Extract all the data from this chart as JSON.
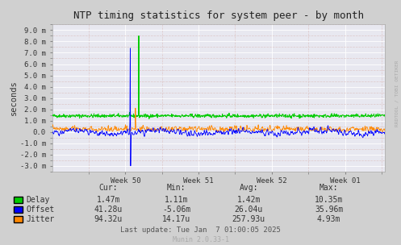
{
  "title": "NTP timing statistics for system peer - by month",
  "ylabel": "seconds",
  "bg_color": "#d0d0d0",
  "plot_bg_color": "#e8e8f0",
  "grid_color_major": "#ffffff",
  "grid_color_minor": "#ddc8c8",
  "ylim": [
    -0.0035,
    0.0095
  ],
  "yticks": [
    -0.003,
    -0.002,
    -0.001,
    0.0,
    0.001,
    0.002,
    0.003,
    0.004,
    0.005,
    0.006,
    0.007,
    0.008,
    0.009
  ],
  "ytick_labels": [
    "-3.0 m",
    "-2.0 m",
    "-1.0 m",
    "0.0",
    "1.0 m",
    "2.0 m",
    "3.0 m",
    "4.0 m",
    "5.0 m",
    "6.0 m",
    "7.0 m",
    "8.0 m",
    "9.0 m"
  ],
  "xtick_positions": [
    0.22,
    0.44,
    0.66,
    0.88
  ],
  "xtick_labels": [
    "Week 50",
    "Week 51",
    "Week 52",
    "Week 01"
  ],
  "legend_labels": [
    "Delay",
    "Offset",
    "Jitter"
  ],
  "legend_colors": [
    "#00cc00",
    "#0000ff",
    "#ff8800"
  ],
  "stats_headers": [
    "Cur:",
    "Min:",
    "Avg:",
    "Max:"
  ],
  "stats_delay": [
    "1.47m",
    "1.11m",
    "1.42m",
    "10.35m"
  ],
  "stats_offset": [
    "41.28u",
    "-5.06m",
    "26.04u",
    "35.96m"
  ],
  "stats_jitter": [
    "94.32u",
    "14.17u",
    "257.93u",
    "4.93m"
  ],
  "last_update": "Last update: Tue Jan  7 01:00:05 2025",
  "munin_version": "Munin 2.0.33-1",
  "side_text": "RRDTOOL / TOBI OETIKER",
  "delay_color": "#00cc00",
  "offset_color": "#0000ff",
  "jitter_color": "#ff8800",
  "num_points": 900
}
